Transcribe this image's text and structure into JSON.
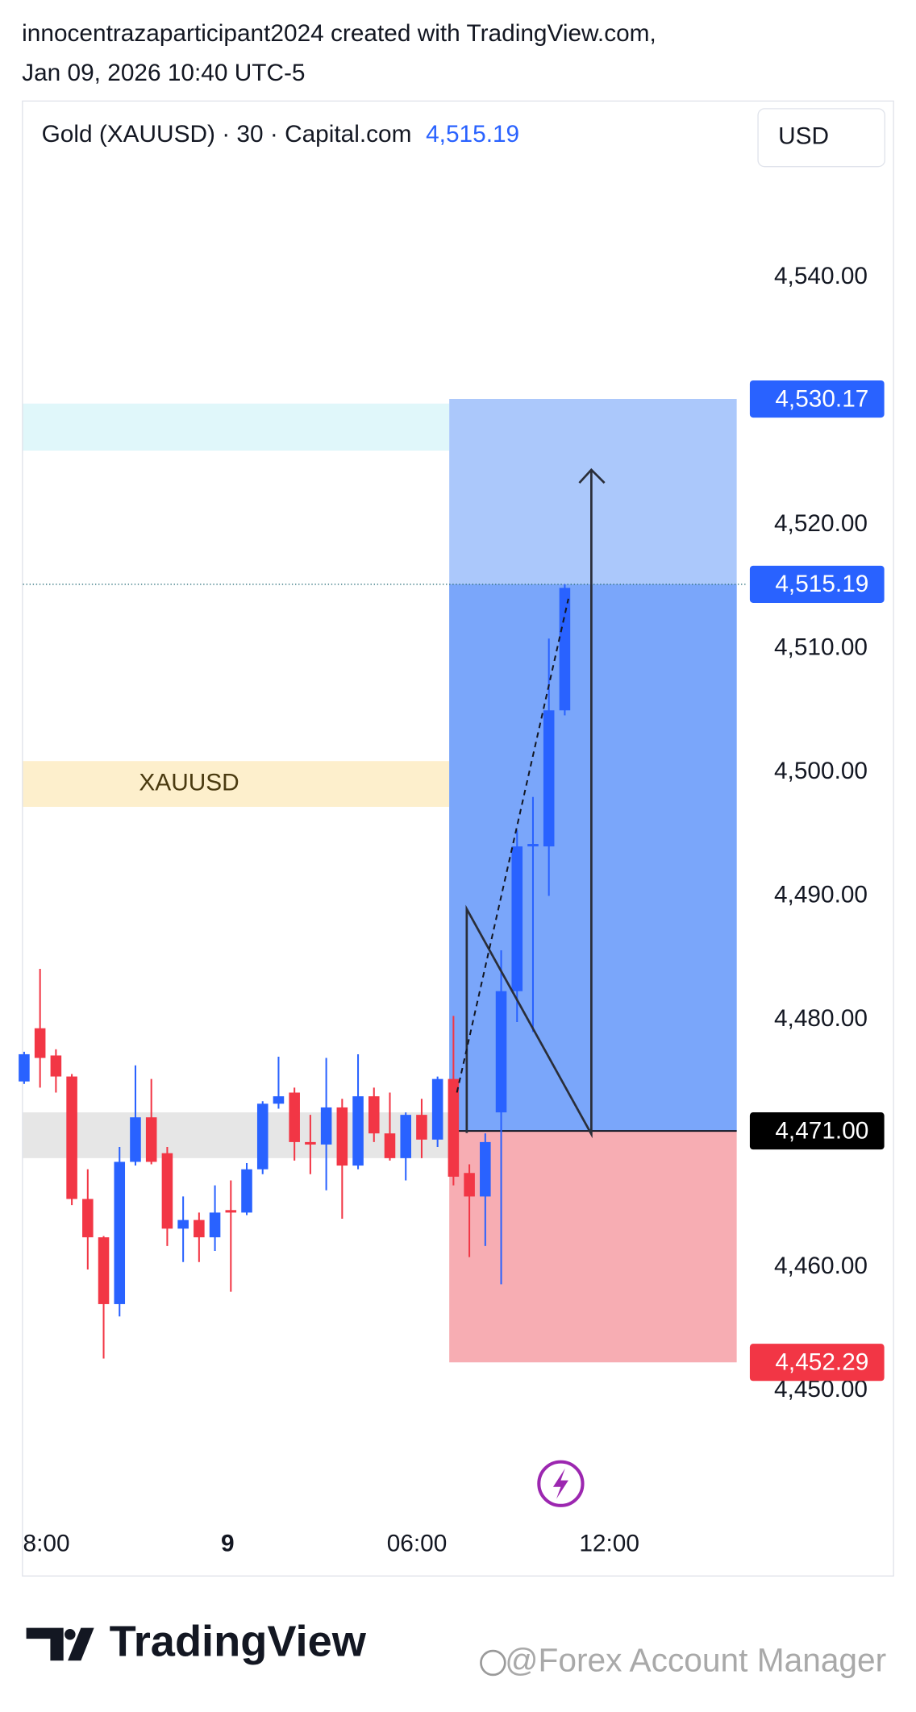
{
  "chart_data": {
    "type": "candlestick",
    "attribution": "innocentrazaparticipant2024 created with TradingView.com,",
    "timestamp": "Jan 09, 2026 10:40 UTC-5",
    "title": "Gold (XAUUSD) · 30 · Capital.com",
    "currency": "USD",
    "last_price": {
      "value": 4515.19,
      "label": "4,515.19"
    },
    "up_color": "#2962ff",
    "down_color": "#f23645",
    "x": [
      0,
      1,
      2,
      3,
      4,
      5,
      6,
      7,
      8,
      9,
      10,
      11,
      12,
      13,
      14,
      15,
      16,
      17,
      18,
      19,
      20,
      21,
      22,
      23,
      24,
      25,
      26,
      27,
      28,
      29,
      30,
      31,
      32,
      33,
      34
    ],
    "open": [
      4475.0,
      4479.3,
      4477.1,
      4475.4,
      4465.5,
      4462.4,
      4457.0,
      4468.5,
      4472.1,
      4469.2,
      4463.1,
      4463.8,
      4462.4,
      4464.6,
      4464.4,
      4467.9,
      4473.2,
      4474.1,
      4470.1,
      4469.9,
      4472.9,
      4468.2,
      4473.8,
      4470.8,
      4468.8,
      4472.3,
      4470.3,
      4475.2,
      4467.6,
      4465.7,
      4472.5,
      4482.3,
      4494.0,
      4494.0,
      4505.0
    ],
    "high": [
      4477.4,
      4484.1,
      4477.6,
      4475.6,
      4467.9,
      4462.5,
      4469.7,
      4476.3,
      4475.2,
      4469.7,
      4465.7,
      4464.4,
      4466.6,
      4467.0,
      4468.4,
      4473.4,
      4477.0,
      4474.5,
      4472.3,
      4476.9,
      4473.6,
      4477.2,
      4474.5,
      4474.1,
      4472.5,
      4473.6,
      4475.4,
      4480.3,
      4468.3,
      4470.8,
      4485.6,
      4495.3,
      4498.0,
      4510.8,
      4515.2
    ],
    "low": [
      4474.8,
      4474.5,
      4474.1,
      4465.0,
      4459.8,
      4452.6,
      4456.0,
      4468.2,
      4468.3,
      4461.7,
      4460.4,
      4460.4,
      4461.3,
      4458.0,
      4464.2,
      4467.5,
      4472.8,
      4468.6,
      4467.5,
      4466.2,
      4463.9,
      4467.9,
      4470.1,
      4468.6,
      4467.0,
      4468.8,
      4469.7,
      4466.6,
      4460.8,
      4461.7,
      4458.6,
      4479.8,
      4479.0,
      4490.0,
      4504.6
    ],
    "close": [
      4477.2,
      4476.9,
      4475.4,
      4465.5,
      4462.4,
      4457.0,
      4468.5,
      4472.1,
      4468.5,
      4463.1,
      4463.8,
      4462.4,
      4464.4,
      4464.4,
      4467.9,
      4473.2,
      4473.8,
      4470.1,
      4469.9,
      4472.9,
      4468.2,
      4473.8,
      4470.8,
      4468.8,
      4472.3,
      4470.3,
      4475.2,
      4467.3,
      4465.7,
      4470.1,
      4482.3,
      4494.0,
      4494.2,
      4505.0,
      4514.9
    ],
    "xlim": [
      -0.14,
      45.5
    ],
    "xticks": [
      {
        "value": 1.4,
        "label": "8:00"
      },
      {
        "value": 12.8,
        "label": "9"
      },
      {
        "value": 24.7,
        "label": "06:00"
      },
      {
        "value": 36.8,
        "label": "12:00"
      }
    ],
    "ylim": [
      4440.1,
      4554.3
    ],
    "yticks": [
      {
        "value": 4540,
        "label": "4,540.00"
      },
      {
        "value": 4520,
        "label": "4,520.00"
      },
      {
        "value": 4510,
        "label": "4,510.00"
      },
      {
        "value": 4500,
        "label": "4,500.00"
      },
      {
        "value": 4490,
        "label": "4,490.00"
      },
      {
        "value": 4480,
        "label": "4,480.00"
      },
      {
        "value": 4460,
        "label": "4,460.00"
      },
      {
        "value": 4450,
        "label": "4,450.00"
      }
    ],
    "zones": [
      {
        "from": 4529.8,
        "to": 4526.0,
        "color": "#e0f7fa"
      },
      {
        "from": 4500.9,
        "to": 4497.2,
        "color": "#fdefcc",
        "label": "XAUUSD"
      },
      {
        "from": 4472.5,
        "to": 4468.8,
        "color": "#e6e6e6"
      }
    ],
    "position": {
      "target": {
        "value": 4530.17,
        "label": "4,530.17"
      },
      "entry": {
        "value": 4471.0,
        "label": "4,471.00"
      },
      "stop": {
        "value": 4452.29,
        "label": "4,452.29"
      },
      "profit_color": "#abc8fb",
      "active_color": "#7aa6fa",
      "loss_color": "#f7adb3"
    }
  },
  "footer": {
    "brand": "TradingView",
    "watermark": "@Forex Account Manager"
  }
}
